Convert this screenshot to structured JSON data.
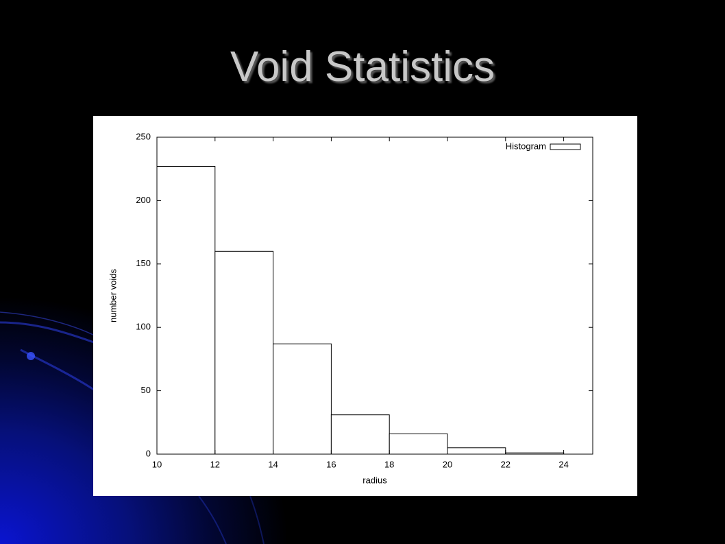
{
  "title": "Void Statistics",
  "chart_data": {
    "type": "histogram",
    "xlabel": "radius",
    "ylabel": "number voids",
    "bins": [
      10,
      12,
      14,
      16,
      18,
      20,
      22,
      24
    ],
    "series": [
      {
        "name": "Histogram",
        "color": "#ffffff",
        "edgecolor": "#000000",
        "values": [
          227,
          160,
          87,
          31,
          16,
          5,
          1
        ]
      }
    ],
    "xlim": [
      10,
      25
    ],
    "ylim": [
      0,
      250
    ],
    "xticks": [
      10,
      12,
      14,
      16,
      18,
      20,
      22,
      24
    ],
    "yticks": [
      0,
      50,
      100,
      150,
      200,
      250
    ],
    "legend": "upper right",
    "grid": false,
    "mirror_ticks": true
  }
}
